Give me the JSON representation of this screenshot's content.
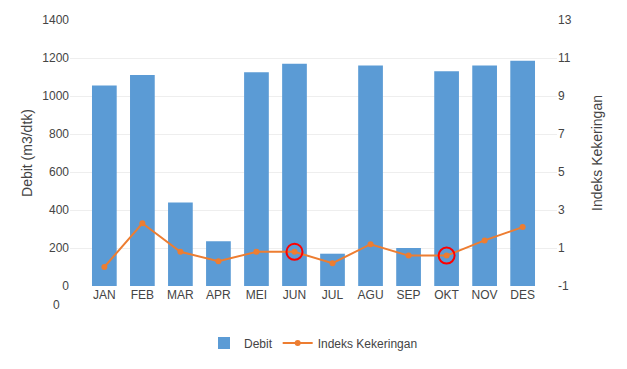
{
  "chart_data": {
    "type": "bar",
    "categories": [
      "JAN",
      "FEB",
      "MAR",
      "APR",
      "MEI",
      "JUN",
      "JUL",
      "AGU",
      "SEP",
      "OKT",
      "NOV",
      "DES"
    ],
    "series": [
      {
        "name": "Debit",
        "type": "bar",
        "color": "#5B9BD5",
        "values": [
          1055,
          1110,
          440,
          235,
          1125,
          1170,
          170,
          1160,
          200,
          1130,
          1160,
          1185
        ]
      },
      {
        "name": "Indeks Kekeringan",
        "type": "line",
        "color": "#ED7D31",
        "marker": "circle",
        "axis": "y2",
        "values": [
          0.0,
          2.3,
          0.8,
          0.3,
          0.8,
          0.8,
          0.2,
          1.2,
          0.6,
          0.6,
          1.4,
          2.1
        ]
      },
      {
        "type": "scatter",
        "color": "red",
        "marker": "circle-open",
        "axis": "y2",
        "values": [
          null,
          null,
          null,
          null,
          null,
          0.8,
          null,
          null,
          null,
          0.6,
          null,
          null
        ]
      }
    ],
    "ylabel": "Debit (m3/dtk)",
    "y2label": "Indeks Kekeringan",
    "ylim": [
      0,
      1400
    ],
    "yticks": [
      0,
      200,
      400,
      600,
      800,
      1000,
      1200,
      1400
    ],
    "y2lim": [
      -1,
      13
    ],
    "y2ticks": [
      -1,
      1,
      3,
      5,
      7,
      9,
      11,
      13
    ],
    "grid": true,
    "legend": "bottom",
    "annotations": [
      "0"
    ]
  }
}
